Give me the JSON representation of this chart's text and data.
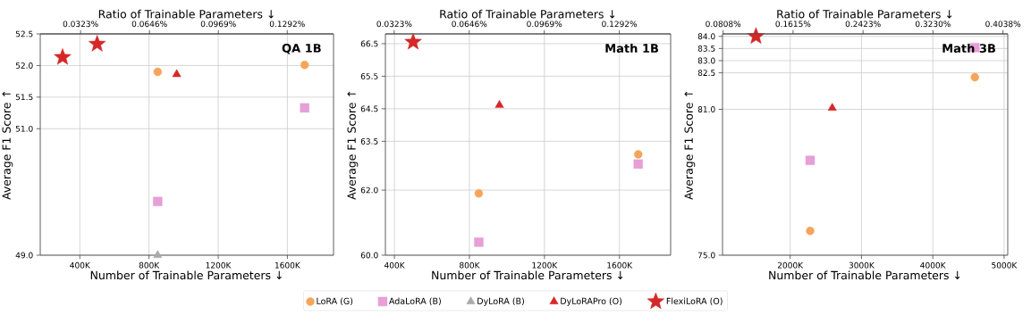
{
  "chart_data": [
    {
      "type": "scatter",
      "title": "QA 1B",
      "xlabel": "Number of Trainable Parameters ↓",
      "ylabel": "Average F1 Score ↑",
      "x2label": "Ratio of Trainable Parameters ↓",
      "xlim": [
        171,
        1867
      ],
      "xticks": [
        {
          "value": 400,
          "label": "400K"
        },
        {
          "value": 800,
          "label": "800K"
        },
        {
          "value": 1200,
          "label": "1200K"
        },
        {
          "value": 1600,
          "label": "1600K"
        }
      ],
      "x2lim": [
        0.0134,
        0.1509
      ],
      "x2ticks": [
        {
          "value": 0.0323,
          "label": "0.0323%"
        },
        {
          "value": 0.0646,
          "label": "0.0646%"
        },
        {
          "value": 0.0969,
          "label": "0.0969%"
        },
        {
          "value": 0.1292,
          "label": "0.1292%"
        }
      ],
      "ylim": [
        49.0,
        52.5
      ],
      "yticks": [
        {
          "value": 49.0,
          "label": "49.0"
        },
        {
          "value": 51.0,
          "label": "51.0"
        },
        51.5,
        {
          "value": 52.0,
          "label": "52.0"
        },
        52.5
      ],
      "grid": true,
      "legend": "bottom",
      "series": [
        {
          "name": "LoRA (G)",
          "color": "#f5a55a",
          "marker": "circle",
          "x": [
            850,
            1700
          ],
          "values": [
            51.9,
            52.01
          ]
        },
        {
          "name": "AdaLoRA (B)",
          "color": "#e79fd7",
          "marker": "square",
          "x": [
            850,
            1700
          ],
          "values": [
            49.85,
            51.33
          ]
        },
        {
          "name": "DyLoRA (B)",
          "color": "#aaaaaa",
          "marker": "triangle",
          "x": [
            850
          ],
          "values": [
            49.0
          ]
        },
        {
          "name": "DyLoRAPro (O)",
          "color": "#d62728",
          "marker": "triangle",
          "x": [
            960
          ],
          "values": [
            51.86
          ]
        },
        {
          "name": "FlexiLoRA (O)",
          "color": "#d62728",
          "marker": "star",
          "x": [
            300,
            500
          ],
          "values": [
            52.13,
            52.34
          ]
        }
      ]
    },
    {
      "type": "scatter",
      "title": "Math 1B",
      "xlabel": "Number of Trainable Parameters ↓",
      "ylabel": "Average F1 Score ↑",
      "x2label": "Ratio of Trainable Parameters ↓",
      "xlim": [
        352,
        1873
      ],
      "xticks": [
        {
          "value": 400,
          "label": "400K"
        },
        {
          "value": 800,
          "label": "800K"
        },
        {
          "value": 1200,
          "label": "1200K"
        },
        {
          "value": 1600,
          "label": "1600K"
        }
      ],
      "x2lim": [
        0.0285,
        0.1513
      ],
      "x2ticks": [
        {
          "value": 0.0323,
          "label": "0.0323%"
        },
        {
          "value": 0.0646,
          "label": "0.0646%"
        },
        {
          "value": 0.0969,
          "label": "0.0969%"
        },
        {
          "value": 0.1292,
          "label": "0.1292%"
        }
      ],
      "ylim": [
        60.0,
        66.8
      ],
      "yticks": [
        {
          "value": 60.0,
          "label": "60.0"
        },
        {
          "value": 62.0,
          "label": "62.0"
        },
        63.5,
        64.5,
        65.5,
        66.5
      ],
      "grid": true,
      "series": [
        {
          "color": "#f5a55a",
          "marker": "circle",
          "x": [
            850,
            1700
          ],
          "values": [
            61.9,
            63.1
          ]
        },
        {
          "color": "#e79fd7",
          "marker": "square",
          "x": [
            850,
            1700
          ],
          "values": [
            60.4,
            62.8
          ]
        },
        {
          "color": "#d62728",
          "marker": "triangle",
          "x": [
            960
          ],
          "values": [
            64.61
          ]
        },
        {
          "color": "#d62728",
          "marker": "star",
          "x": [
            500
          ],
          "values": [
            66.55
          ]
        }
      ]
    },
    {
      "type": "scatter",
      "title": "Math 3B",
      "xlabel": "Number of Trainable Parameters ↓",
      "ylabel": "Average F1 Score ↑",
      "x2label": "Ratio of Trainable Parameters ↓",
      "xlim": [
        1051,
        5051
      ],
      "xticks": [
        {
          "value": 2000,
          "label": "2000K"
        },
        {
          "value": 3000,
          "label": "3000K"
        },
        {
          "value": 4000,
          "label": "4000K"
        },
        {
          "value": 5000,
          "label": "5000K"
        }
      ],
      "x2lim": [
        0.0801,
        0.4093
      ],
      "x2ticks": [
        {
          "value": 0.0808,
          "label": "0.0808%"
        },
        {
          "value": 0.1615,
          "label": "0.1615%"
        },
        {
          "value": 0.2423,
          "label": "0.2423%"
        },
        {
          "value": 0.323,
          "label": "0.3230%"
        },
        {
          "value": 0.4038,
          "label": "0.4038%"
        }
      ],
      "ylim": [
        75.0,
        84.1
      ],
      "yticks": [
        {
          "value": 75.0,
          "label": "75.0"
        },
        {
          "value": 81.0,
          "label": "81.0"
        },
        82.5,
        {
          "value": 83.0,
          "label": "83.0"
        },
        83.5,
        {
          "value": 84.0,
          "label": "84.0"
        }
      ],
      "grid": true,
      "series": [
        {
          "color": "#f5a55a",
          "marker": "circle",
          "x": [
            2280,
            4590
          ],
          "values": [
            76.0,
            82.32
          ]
        },
        {
          "color": "#e79fd7",
          "marker": "square",
          "x": [
            2280,
            4590
          ],
          "values": [
            78.9,
            83.54
          ]
        },
        {
          "color": "#d62728",
          "marker": "triangle",
          "x": [
            2590
          ],
          "values": [
            81.05
          ]
        },
        {
          "color": "#d62728",
          "marker": "star",
          "x": [
            1520
          ],
          "values": [
            84.0
          ]
        }
      ]
    }
  ]
}
